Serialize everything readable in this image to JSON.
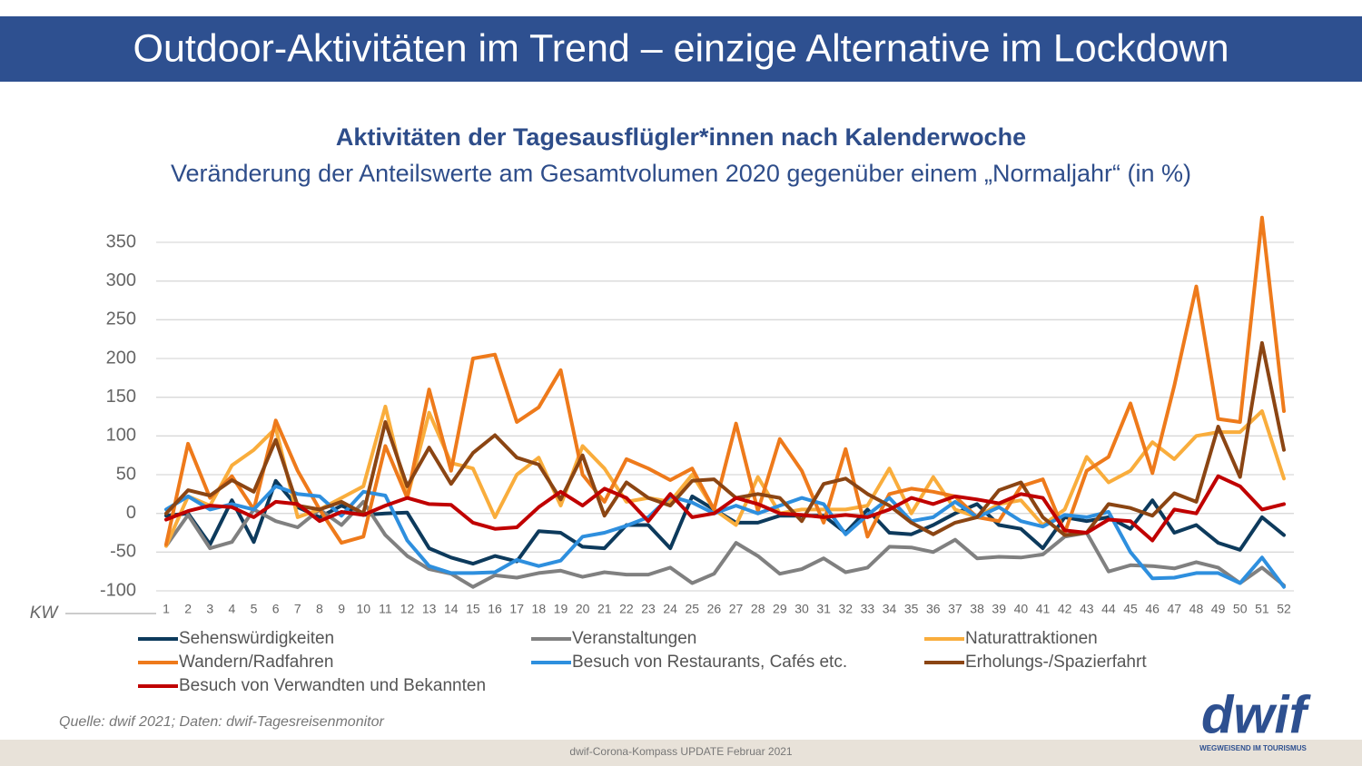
{
  "header": {
    "title": "Outdoor-Aktivitäten im Trend – einzige Alternative im Lockdown"
  },
  "chart_data": {
    "type": "line",
    "title": "Aktivitäten der Tagesausflügler*innen nach Kalenderwoche",
    "subtitle": "Veränderung der Anteilswerte am Gesamtvolumen 2020 gegenüber einem „Normaljahr“ (in %)",
    "x_label": "KW",
    "categories": [
      "1",
      "2",
      "3",
      "4",
      "5",
      "6",
      "7",
      "8",
      "9",
      "10",
      "11",
      "12",
      "13",
      "14",
      "15",
      "16",
      "17",
      "18",
      "19",
      "20",
      "21",
      "22",
      "23",
      "24",
      "25",
      "26",
      "27",
      "28",
      "29",
      "30",
      "31",
      "32",
      "33",
      "34",
      "35",
      "36",
      "37",
      "38",
      "39",
      "40",
      "41",
      "42",
      "43",
      "44",
      "45",
      "46",
      "47",
      "48",
      "49",
      "50",
      "51",
      "52"
    ],
    "ylim": [
      -100,
      390
    ],
    "yticks": [
      -100,
      -50,
      0,
      50,
      100,
      150,
      200,
      250,
      300,
      350
    ],
    "grid": true,
    "legend": "bottom",
    "series": [
      {
        "name": "Sehenswürdigkeiten",
        "color": "#0d3a5c",
        "values": [
          -3,
          0,
          -40,
          17,
          -37,
          42,
          8,
          -5,
          10,
          -2,
          0,
          1,
          -45,
          -57,
          -65,
          -55,
          -62,
          -23,
          -25,
          -43,
          -45,
          -15,
          -15,
          -45,
          22,
          5,
          -12,
          -12,
          -3,
          -3,
          -3,
          -25,
          5,
          -25,
          -27,
          -15,
          0,
          12,
          -15,
          -20,
          -45,
          -5,
          -10,
          -5,
          -20,
          17,
          -25,
          -15,
          -38,
          -47,
          -5,
          -28
        ]
      },
      {
        "name": "Veranstaltungen",
        "color": "#808080",
        "values": [
          -42,
          -2,
          -45,
          -37,
          5,
          -10,
          -18,
          5,
          -15,
          15,
          -28,
          -55,
          -72,
          -78,
          -95,
          -80,
          -83,
          -77,
          -74,
          -82,
          -76,
          -79,
          -79,
          -70,
          -90,
          -78,
          -38,
          -55,
          -78,
          -72,
          -58,
          -76,
          -70,
          -43,
          -44,
          -50,
          -34,
          -58,
          -56,
          -57,
          -53,
          -30,
          -25,
          -75,
          -67,
          -68,
          -71,
          -63,
          -70,
          -90,
          -70,
          -93
        ]
      },
      {
        "name": "Naturattraktionen",
        "color": "#f9ad3c",
        "values": [
          -42,
          22,
          10,
          62,
          82,
          110,
          -5,
          5,
          20,
          35,
          138,
          20,
          130,
          65,
          58,
          -5,
          50,
          72,
          10,
          87,
          58,
          15,
          20,
          15,
          50,
          5,
          -15,
          47,
          0,
          5,
          5,
          5,
          10,
          58,
          0,
          47,
          5,
          -5,
          12,
          17,
          -15,
          5,
          73,
          40,
          55,
          92,
          70,
          100,
          105,
          105,
          132,
          45
        ]
      },
      {
        "name": "Wandern/Radfahren",
        "color": "#ee7a1b",
        "values": [
          -40,
          90,
          20,
          48,
          5,
          120,
          55,
          5,
          -38,
          -30,
          87,
          20,
          160,
          55,
          200,
          205,
          118,
          137,
          185,
          50,
          15,
          70,
          58,
          43,
          58,
          5,
          116,
          3,
          96,
          55,
          -12,
          83,
          -30,
          25,
          32,
          28,
          22,
          -5,
          -10,
          35,
          44,
          -25,
          55,
          73,
          142,
          52,
          165,
          293,
          122,
          118,
          382,
          132
        ]
      },
      {
        "name": "Besuch von Restaurants, Cafés etc.",
        "color": "#2e8fde",
        "values": [
          5,
          22,
          5,
          12,
          5,
          35,
          25,
          22,
          -3,
          28,
          23,
          -35,
          -68,
          -77,
          -77,
          -76,
          -60,
          -68,
          -61,
          -30,
          -25,
          -16,
          -5,
          22,
          14,
          0,
          10,
          0,
          10,
          20,
          12,
          -27,
          -2,
          20,
          -10,
          -5,
          15,
          -5,
          8,
          -10,
          -17,
          -2,
          -5,
          2,
          -50,
          -84,
          -83,
          -77,
          -77,
          -90,
          -57,
          -95
        ]
      },
      {
        "name": "Erholungs-/Spazierfahrt",
        "color": "#8b4513",
        "values": [
          0,
          30,
          23,
          43,
          28,
          95,
          10,
          5,
          15,
          0,
          118,
          35,
          85,
          38,
          78,
          101,
          72,
          63,
          18,
          75,
          -3,
          40,
          20,
          10,
          42,
          44,
          20,
          25,
          20,
          -10,
          38,
          45,
          25,
          10,
          -12,
          -27,
          -12,
          -5,
          30,
          40,
          -5,
          -28,
          -25,
          12,
          7,
          -3,
          26,
          15,
          112,
          47,
          220,
          82
        ]
      },
      {
        "name": "Besuch von Verwandten und Bekannten",
        "color": "#c00000",
        "values": [
          -8,
          3,
          10,
          8,
          -5,
          15,
          12,
          -10,
          2,
          -2,
          10,
          20,
          12,
          11,
          -12,
          -20,
          -18,
          8,
          28,
          10,
          32,
          20,
          -10,
          25,
          -5,
          0,
          20,
          12,
          0,
          -2,
          -5,
          -2,
          -5,
          5,
          20,
          12,
          22,
          18,
          13,
          25,
          20,
          -22,
          -25,
          -8,
          -10,
          -35,
          5,
          0,
          48,
          35,
          5,
          12
        ]
      }
    ]
  },
  "source": "Quelle: dwif 2021; Daten: dwif-Tagesreisenmonitor",
  "logo": {
    "name": "dwif",
    "tagline": "WEGWEISEND IM TOURISMUS"
  },
  "footer": "dwif-Corona-Kompass UPDATE Februar 2021"
}
